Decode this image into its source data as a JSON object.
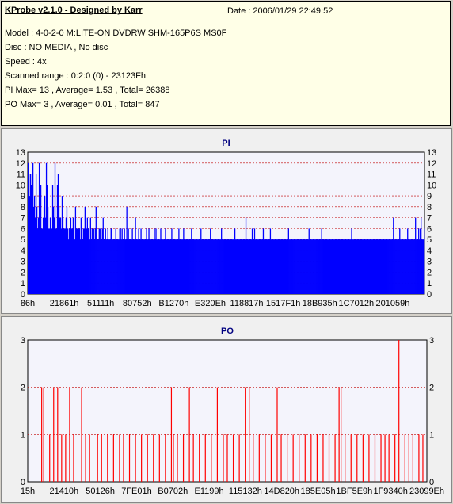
{
  "header": {
    "title": "KProbe v2.1.0 - Designed by Karr",
    "date": "Date : 2006/01/29 22:49:52",
    "lines": [
      "Model : 4-0-2-0 M:LITE-ON DVDRW SHM-165P6S MS0F",
      "Disc : NO MEDIA , No disc",
      "Speed : 4x",
      "Scanned range : 0:2:0 (0) - 23123Fh",
      "PI Max= 13 , Average= 1.53 , Total= 26388",
      "PO Max= 3 , Average= 0.01 , Total= 847"
    ]
  },
  "colors": {
    "pi_fill": "#0000ff",
    "po_stroke": "#ff0000",
    "title": "#000080",
    "grid": "#c00000"
  },
  "chart_data": [
    {
      "type": "bar",
      "title": "PI",
      "ylim": [
        0,
        13
      ],
      "yticks": [
        0,
        1,
        2,
        3,
        4,
        5,
        6,
        7,
        8,
        9,
        10,
        11,
        12,
        13
      ],
      "x_tick_labels": [
        "86h",
        "21861h",
        "51111h",
        "80752h",
        "B1270h",
        "E320Eh",
        "118817h",
        "1517F1h",
        "18B935h",
        "1C7012h",
        "201059h"
      ],
      "grid": true,
      "values": [
        12,
        11,
        9,
        11,
        10,
        9,
        12,
        8,
        9,
        7,
        11,
        8,
        6,
        7,
        12,
        9,
        10,
        6,
        6,
        7,
        8,
        9,
        7,
        12,
        10,
        8,
        6,
        6,
        7,
        5,
        6,
        10,
        8,
        7,
        12,
        6,
        6,
        10,
        11,
        8,
        7,
        7,
        6,
        9,
        7,
        6,
        6,
        6,
        7,
        8,
        6,
        5,
        6,
        6,
        7,
        6,
        6,
        7,
        5,
        5,
        8,
        6,
        6,
        5,
        6,
        6,
        5,
        7,
        6,
        5,
        6,
        6,
        8,
        5,
        6,
        7,
        6,
        5,
        5,
        7,
        5,
        6,
        5,
        6,
        5,
        6,
        8,
        5,
        5,
        5,
        6,
        6,
        5,
        5,
        6,
        7,
        5,
        5,
        6,
        5,
        5,
        6,
        5,
        5,
        5,
        6,
        6,
        5,
        5,
        5,
        5,
        6,
        5,
        5,
        5,
        5,
        6,
        6,
        5,
        6,
        5,
        5,
        6,
        5,
        5,
        8,
        5,
        6,
        5,
        5,
        5,
        5,
        6,
        5,
        5,
        5,
        7,
        5,
        5,
        5,
        6,
        5,
        5,
        6,
        5,
        5,
        5,
        5,
        5,
        5,
        6,
        5,
        5,
        6,
        5,
        5,
        5,
        5,
        5,
        5,
        6,
        5,
        6,
        5,
        5,
        5,
        5,
        5,
        6,
        5,
        5,
        5,
        5,
        5,
        6,
        5,
        5,
        5,
        5,
        5,
        5,
        5,
        6,
        5,
        5,
        5,
        5,
        5,
        5,
        5,
        5,
        6,
        5,
        5,
        5,
        5,
        5,
        6,
        5,
        5,
        5,
        5,
        5,
        5,
        5,
        5,
        5,
        6,
        5,
        5,
        5,
        5,
        5,
        5,
        5,
        5,
        5,
        5,
        5,
        6,
        5,
        5,
        5,
        5,
        5,
        5,
        5,
        5,
        5,
        5,
        5,
        6,
        5,
        5,
        5,
        5,
        5,
        5,
        5,
        5,
        5,
        5,
        5,
        5,
        5,
        6,
        5,
        5,
        5,
        5,
        5,
        5,
        5,
        5,
        5,
        5,
        5,
        5,
        5,
        5,
        5,
        5,
        6,
        5,
        5,
        5,
        5,
        5,
        5,
        5,
        5,
        5,
        5,
        5,
        5,
        5,
        7,
        5,
        5,
        5,
        5,
        5,
        5,
        5,
        6,
        5,
        5,
        6,
        5,
        5,
        5,
        5,
        5,
        5,
        5,
        5,
        5,
        5,
        6,
        5,
        5,
        5,
        5,
        5,
        5,
        5,
        5,
        6,
        5,
        5,
        5,
        5,
        5,
        5,
        5,
        5,
        5,
        5,
        5,
        5,
        5,
        5,
        5,
        5,
        5,
        5,
        5,
        5,
        5,
        5,
        6,
        5,
        5,
        5,
        5,
        5,
        5,
        5,
        5,
        5,
        5,
        5,
        5,
        5,
        5,
        5,
        5,
        5,
        5,
        5,
        5,
        5,
        5,
        5,
        5,
        5,
        6,
        5,
        5,
        5,
        5,
        5,
        5,
        5,
        5,
        5,
        5,
        5,
        5,
        5,
        5,
        5,
        6,
        5,
        5,
        5,
        5,
        5,
        5,
        5,
        5,
        5,
        5,
        5,
        5,
        5,
        5,
        5,
        5,
        5,
        5,
        5,
        5,
        5,
        5,
        5,
        5,
        5,
        5,
        5,
        5,
        5,
        5,
        5,
        5,
        5,
        5,
        5,
        5,
        5,
        6,
        5,
        5,
        5,
        5,
        5,
        5,
        5,
        5,
        5,
        5,
        5,
        5,
        5,
        5,
        5,
        5,
        5,
        5,
        5,
        5,
        5,
        5,
        5,
        5,
        5,
        5,
        5,
        5,
        5,
        5,
        5,
        5,
        5,
        5,
        5,
        5,
        5,
        5,
        5,
        5,
        5,
        5,
        5,
        5,
        5,
        5,
        5,
        5,
        5,
        5,
        5,
        5,
        7,
        5,
        5,
        5,
        5,
        5,
        5,
        5,
        6,
        5,
        5,
        5,
        5,
        5,
        5,
        5,
        5,
        5,
        6,
        5,
        5,
        5,
        5,
        5,
        5,
        5,
        5,
        5,
        7,
        5,
        5,
        5,
        6,
        5,
        6,
        7,
        5,
        5,
        5,
        6
      ]
    },
    {
      "type": "bar",
      "title": "PO",
      "ylim": [
        0,
        3
      ],
      "yticks": [
        0,
        1,
        2,
        3
      ],
      "x_tick_labels": [
        "15h",
        "21410h",
        "50126h",
        "7FE01h",
        "B0702h",
        "E1199h",
        "115132h",
        "14D820h",
        "185E05h",
        "1BF5E9h",
        "1F9340h",
        "23099Eh"
      ],
      "grid": true,
      "spikes": [
        [
          0.035,
          2
        ],
        [
          0.04,
          2
        ],
        [
          0.055,
          1
        ],
        [
          0.065,
          2
        ],
        [
          0.075,
          2
        ],
        [
          0.085,
          1
        ],
        [
          0.095,
          1
        ],
        [
          0.105,
          2
        ],
        [
          0.115,
          1
        ],
        [
          0.135,
          2
        ],
        [
          0.145,
          1
        ],
        [
          0.155,
          1
        ],
        [
          0.175,
          1
        ],
        [
          0.185,
          1
        ],
        [
          0.2,
          1
        ],
        [
          0.215,
          1
        ],
        [
          0.23,
          1
        ],
        [
          0.24,
          1
        ],
        [
          0.255,
          1
        ],
        [
          0.27,
          1
        ],
        [
          0.285,
          1
        ],
        [
          0.3,
          1
        ],
        [
          0.315,
          1
        ],
        [
          0.33,
          1
        ],
        [
          0.345,
          1
        ],
        [
          0.36,
          2
        ],
        [
          0.365,
          1
        ],
        [
          0.375,
          1
        ],
        [
          0.39,
          1
        ],
        [
          0.405,
          2
        ],
        [
          0.415,
          1
        ],
        [
          0.43,
          1
        ],
        [
          0.445,
          1
        ],
        [
          0.46,
          1
        ],
        [
          0.475,
          2
        ],
        [
          0.49,
          1
        ],
        [
          0.5,
          1
        ],
        [
          0.515,
          1
        ],
        [
          0.53,
          1
        ],
        [
          0.545,
          2
        ],
        [
          0.555,
          2
        ],
        [
          0.565,
          1
        ],
        [
          0.58,
          1
        ],
        [
          0.595,
          1
        ],
        [
          0.61,
          1
        ],
        [
          0.625,
          2
        ],
        [
          0.635,
          1
        ],
        [
          0.65,
          1
        ],
        [
          0.665,
          1
        ],
        [
          0.68,
          1
        ],
        [
          0.695,
          1
        ],
        [
          0.71,
          1
        ],
        [
          0.725,
          1
        ],
        [
          0.74,
          1
        ],
        [
          0.755,
          1
        ],
        [
          0.77,
          1
        ],
        [
          0.78,
          2
        ],
        [
          0.785,
          2
        ],
        [
          0.795,
          1
        ],
        [
          0.81,
          1
        ],
        [
          0.825,
          1
        ],
        [
          0.84,
          1
        ],
        [
          0.855,
          1
        ],
        [
          0.87,
          1
        ],
        [
          0.885,
          1
        ],
        [
          0.895,
          1
        ],
        [
          0.905,
          1
        ],
        [
          0.92,
          1
        ],
        [
          0.93,
          3
        ],
        [
          0.945,
          1
        ],
        [
          0.955,
          1
        ],
        [
          0.965,
          1
        ],
        [
          0.98,
          1
        ],
        [
          0.99,
          1
        ]
      ]
    }
  ]
}
